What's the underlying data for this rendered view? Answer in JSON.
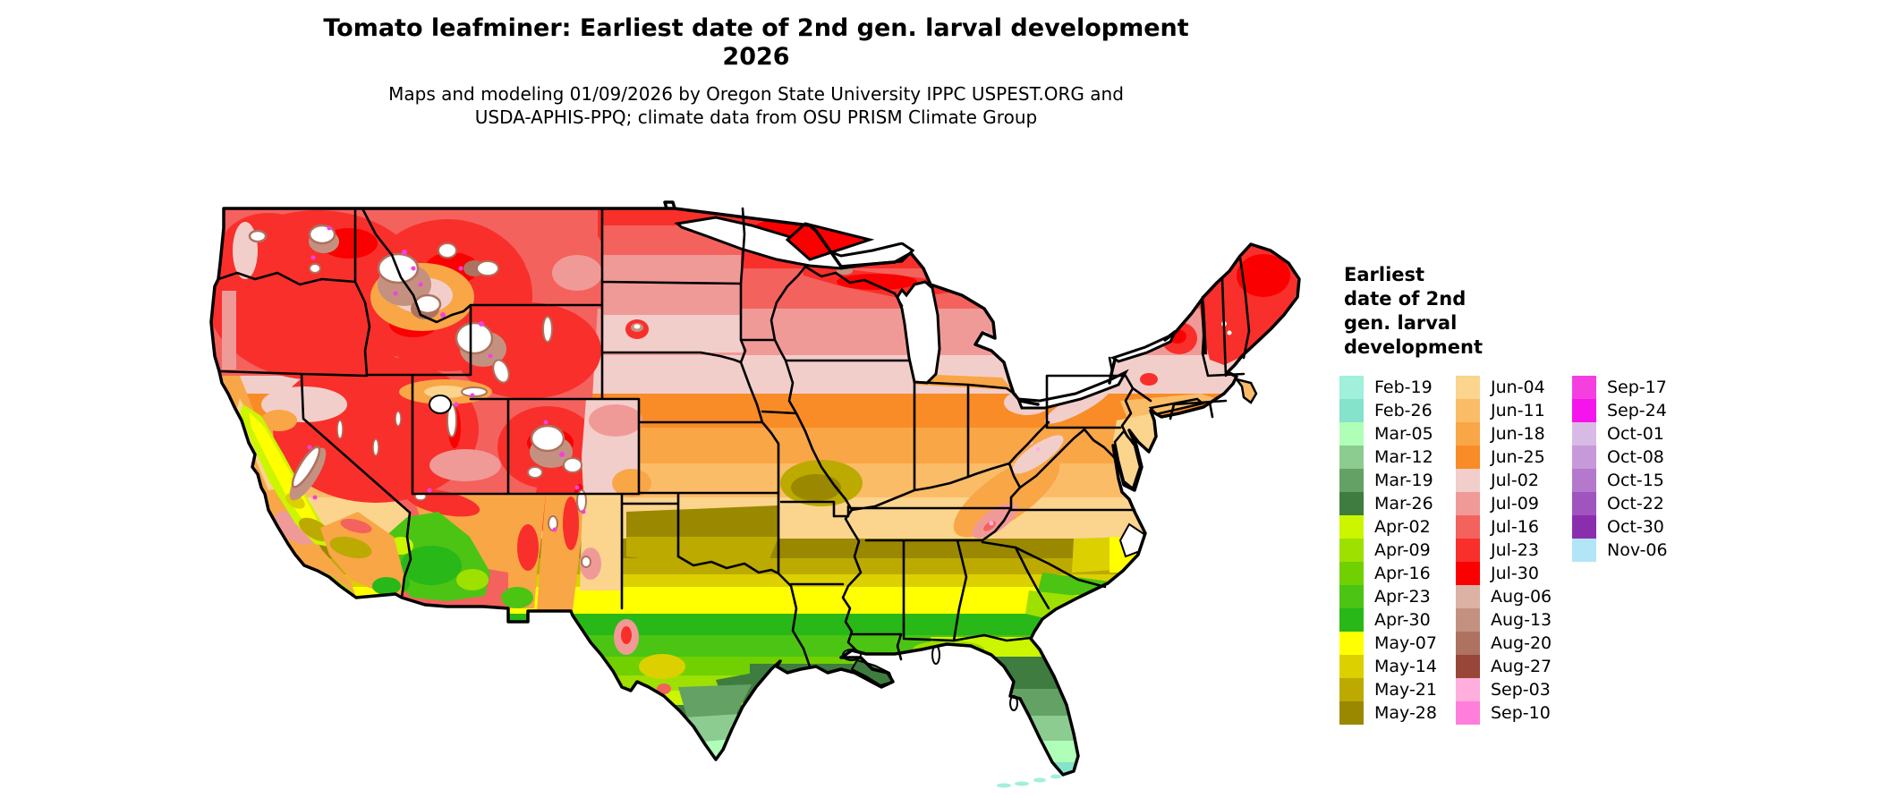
{
  "title": {
    "line1": "Tomato leafminer: Earliest date of 2nd gen. larval development",
    "line2": "2026"
  },
  "subtitle": {
    "line1": "Maps and modeling 01/09/2026 by Oregon State University IPPC USPEST.ORG and",
    "line2": "USDA-APHIS-PPQ; climate data from OSU PRISM Climate Group"
  },
  "legend": {
    "title_lines": [
      "Earliest",
      "date of 2nd",
      "gen. larval",
      "development"
    ],
    "columns": [
      [
        {
          "label": "Feb-19",
          "color": "#A0F0DC"
        },
        {
          "label": "Feb-26",
          "color": "#85E2CB"
        },
        {
          "label": "Mar-05",
          "color": "#B0FFB8"
        },
        {
          "label": "Mar-12",
          "color": "#8CCC90"
        },
        {
          "label": "Mar-19",
          "color": "#63A164"
        },
        {
          "label": "Mar-26",
          "color": "#3E7C40"
        },
        {
          "label": "Apr-02",
          "color": "#CCF500"
        },
        {
          "label": "Apr-09",
          "color": "#9EE000"
        },
        {
          "label": "Apr-16",
          "color": "#70D000"
        },
        {
          "label": "Apr-23",
          "color": "#4CC414"
        },
        {
          "label": "Apr-30",
          "color": "#28B818"
        },
        {
          "label": "May-07",
          "color": "#FFFF00"
        },
        {
          "label": "May-14",
          "color": "#DCD000"
        },
        {
          "label": "May-21",
          "color": "#BCAA00"
        },
        {
          "label": "May-28",
          "color": "#9A8800"
        }
      ],
      [
        {
          "label": "Jun-04",
          "color": "#FBD48E"
        },
        {
          "label": "Jun-11",
          "color": "#FBBC68"
        },
        {
          "label": "Jun-18",
          "color": "#F9A647"
        },
        {
          "label": "Jun-25",
          "color": "#F98C26"
        },
        {
          "label": "Jul-02",
          "color": "#F2CECB"
        },
        {
          "label": "Jul-09",
          "color": "#F09A98"
        },
        {
          "label": "Jul-16",
          "color": "#F4625E"
        },
        {
          "label": "Jul-23",
          "color": "#F92F2B"
        },
        {
          "label": "Jul-30",
          "color": "#FA0000"
        },
        {
          "label": "Aug-06",
          "color": "#DCB2A4"
        },
        {
          "label": "Aug-13",
          "color": "#C49181"
        },
        {
          "label": "Aug-20",
          "color": "#AD7260"
        },
        {
          "label": "Aug-27",
          "color": "#974638"
        },
        {
          "label": "Sep-03",
          "color": "#FFAEDE"
        },
        {
          "label": "Sep-10",
          "color": "#FF7EDB"
        }
      ],
      [
        {
          "label": "Sep-17",
          "color": "#F540E0"
        },
        {
          "label": "Sep-24",
          "color": "#F515EC"
        },
        {
          "label": "Oct-01",
          "color": "#D8BBE5"
        },
        {
          "label": "Oct-08",
          "color": "#C69ADA"
        },
        {
          "label": "Oct-15",
          "color": "#B478CD"
        },
        {
          "label": "Oct-22",
          "color": "#A054BE"
        },
        {
          "label": "Oct-30",
          "color": "#8B2EAD"
        },
        {
          "label": "Nov-06",
          "color": "#B2E5F5"
        }
      ]
    ]
  },
  "map": {
    "region": "Contiguous United States",
    "no_data_color": "#FFFFFF",
    "border_color": "#000000"
  }
}
